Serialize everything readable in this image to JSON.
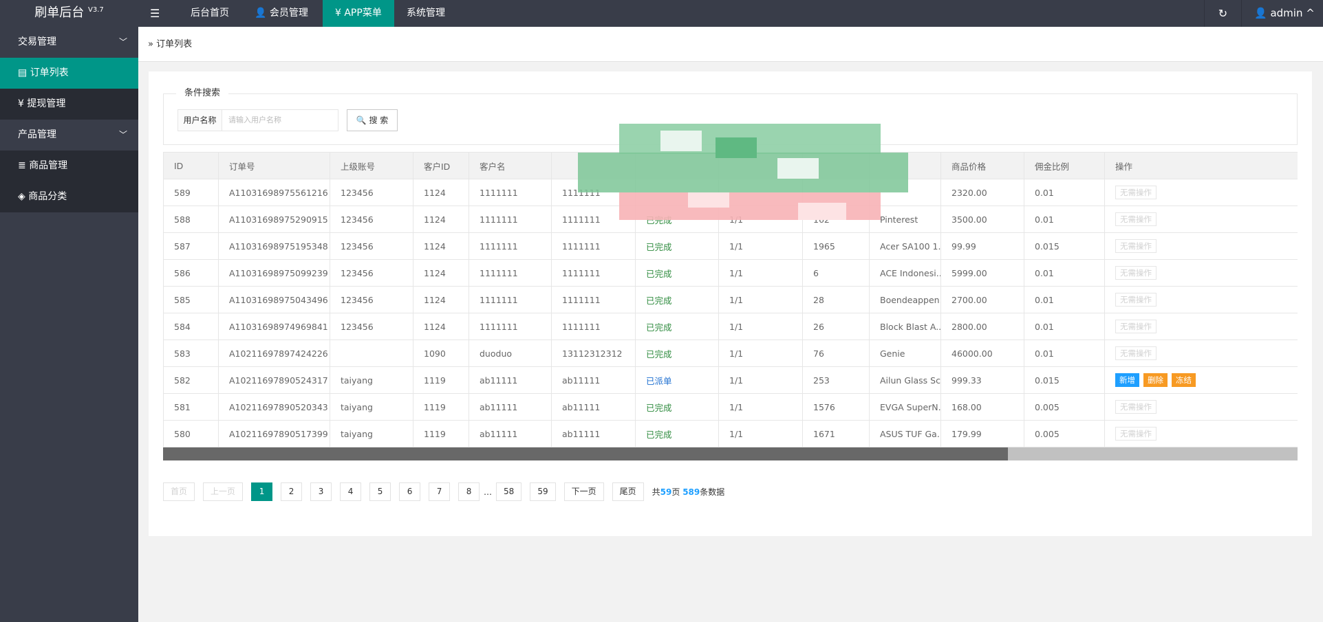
{
  "header": {
    "logo": "刷单后台",
    "version": "V3.7",
    "nav": [
      "后台首页",
      "会员管理",
      "APP菜单",
      "系统管理"
    ],
    "active_nav": 2,
    "user": "admin"
  },
  "sidebar": [
    {
      "label": "交易管理",
      "kind": "group"
    },
    {
      "label": "订单列表",
      "kind": "active"
    },
    {
      "label": "提现管理",
      "kind": "item"
    },
    {
      "label": "产品管理",
      "kind": "group"
    },
    {
      "label": "商品管理",
      "kind": "item"
    },
    {
      "label": "商品分类",
      "kind": "item"
    }
  ],
  "breadcrumb": "订单列表",
  "search": {
    "legend": "条件搜索",
    "field_label": "用户名称",
    "placeholder": "请输入用户名称",
    "button": "搜 索"
  },
  "table": {
    "headers": [
      "ID",
      "订单号",
      "上级账号",
      "客户ID",
      "客户名",
      null,
      null,
      null,
      null,
      null,
      "商品价格",
      "佣金比例",
      "操作"
    ],
    "rows": [
      {
        "cells": [
          "589",
          "A11031698975561216",
          "123456",
          "1124",
          "1111111",
          "1111111",
          null,
          null,
          null,
          null,
          "2320.00",
          "0.01"
        ],
        "actions": [
          {
            "label": "无需操作",
            "style": "disabled"
          }
        ]
      },
      {
        "cells": [
          "588",
          "A11031698975290915",
          "123456",
          "1124",
          "1111111",
          "1111111",
          {
            "text": "已完成",
            "color": "#2e8b3e"
          },
          "1/1",
          "162",
          "Pinterest",
          "3500.00",
          "0.01"
        ],
        "actions": [
          {
            "label": "无需操作",
            "style": "disabled"
          }
        ]
      },
      {
        "cells": [
          "587",
          "A11031698975195348",
          "123456",
          "1124",
          "1111111",
          "1111111",
          {
            "text": "已完成",
            "color": "#2e8b3e"
          },
          "1/1",
          "1965",
          "Acer SA100 1....",
          "99.99",
          "0.015"
        ],
        "actions": [
          {
            "label": "无需操作",
            "style": "disabled"
          }
        ]
      },
      {
        "cells": [
          "586",
          "A11031698975099239",
          "123456",
          "1124",
          "1111111",
          "1111111",
          {
            "text": "已完成",
            "color": "#2e8b3e"
          },
          "1/1",
          "6",
          "ACE Indonesi...",
          "5999.00",
          "0.01"
        ],
        "actions": [
          {
            "label": "无需操作",
            "style": "disabled"
          }
        ]
      },
      {
        "cells": [
          "585",
          "A11031698975043496",
          "123456",
          "1124",
          "1111111",
          "1111111",
          {
            "text": "已完成",
            "color": "#2e8b3e"
          },
          "1/1",
          "28",
          "Boendeappen...",
          "2700.00",
          "0.01"
        ],
        "actions": [
          {
            "label": "无需操作",
            "style": "disabled"
          }
        ]
      },
      {
        "cells": [
          "584",
          "A11031698974969841",
          "123456",
          "1124",
          "1111111",
          "1111111",
          {
            "text": "已完成",
            "color": "#2e8b3e"
          },
          "1/1",
          "26",
          "Block Blast A...",
          "2800.00",
          "0.01"
        ],
        "actions": [
          {
            "label": "无需操作",
            "style": "disabled"
          }
        ]
      },
      {
        "cells": [
          "583",
          "A10211697897424226",
          null,
          "1090",
          "duoduo",
          "13112312312",
          {
            "text": "已完成",
            "color": "#2e8b3e"
          },
          "1/1",
          "76",
          "Genie",
          "46000.00",
          "0.01"
        ],
        "actions": [
          {
            "label": "无需操作",
            "style": "disabled"
          }
        ]
      },
      {
        "cells": [
          "582",
          "A10211697890524317",
          "taiyang",
          "1119",
          "ab11111",
          "ab11111",
          {
            "text": "已派单",
            "color": "#1e6fd0"
          },
          "1/1",
          "253",
          "Ailun Glass Sc...",
          "999.33",
          "0.015"
        ],
        "actions": [
          {
            "label": "新增",
            "style": "#1e9fff"
          },
          {
            "label": "删除",
            "style": "#f79a23"
          },
          {
            "label": "冻结",
            "style": "#f79a23"
          }
        ]
      },
      {
        "cells": [
          "581",
          "A10211697890520343",
          "taiyang",
          "1119",
          "ab11111",
          "ab11111",
          {
            "text": "已完成",
            "color": "#2e8b3e"
          },
          "1/1",
          "1576",
          "EVGA SuperN...",
          "168.00",
          "0.005"
        ],
        "actions": [
          {
            "label": "无需操作",
            "style": "disabled"
          }
        ]
      },
      {
        "cells": [
          "580",
          "A10211697890517399",
          "taiyang",
          "1119",
          "ab11111",
          "ab11111",
          {
            "text": "已完成",
            "color": "#2e8b3e"
          },
          "1/1",
          "1671",
          "ASUS TUF Ga...",
          "179.99",
          "0.005"
        ],
        "actions": [
          {
            "label": "无需操作",
            "style": "disabled"
          }
        ]
      }
    ]
  },
  "pagination": {
    "buttons": [
      "首页",
      "上一页",
      "1",
      "2",
      "3",
      "4",
      "5",
      "6",
      "7",
      "8",
      "…",
      "58",
      "59",
      "下一页",
      "尾页"
    ],
    "disabled": [
      0,
      1
    ],
    "current": 2,
    "ellipsis": 10,
    "summary": {
      "prefix": "共",
      "pages": 59,
      "mid": "页",
      "total": 589,
      "suffix": "条数据"
    }
  }
}
